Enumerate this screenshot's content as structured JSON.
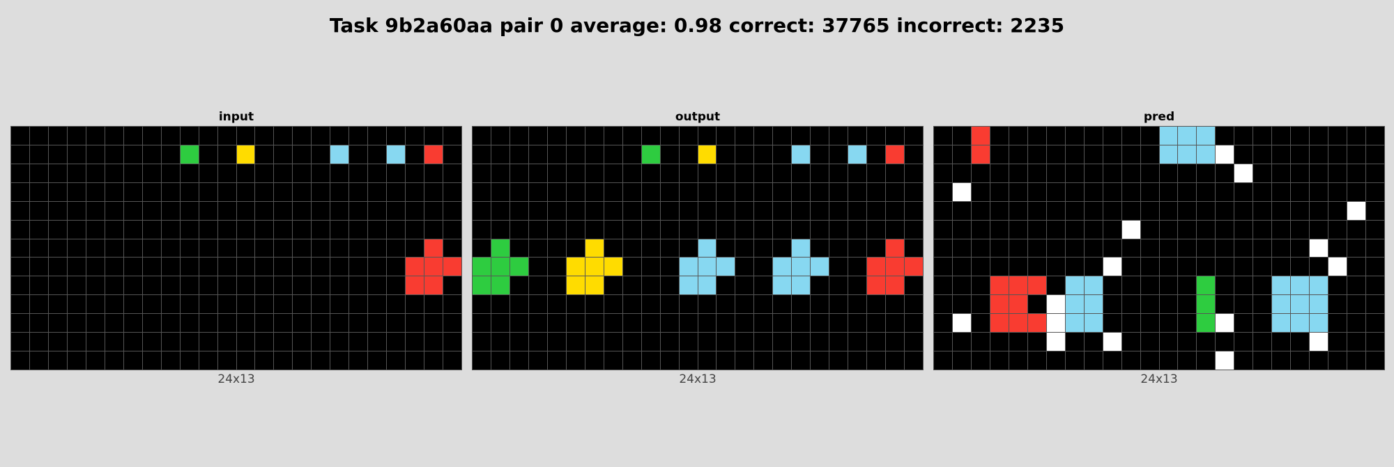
{
  "title": "Task 9b2a60aa pair 0 average: 0.98 correct: 37765 incorrect: 2235",
  "colors": {
    "0": "#000000",
    "1": "#1e93ff",
    "2": "#f93c31",
    "3": "#2ecc40",
    "4": "#ffdc00",
    "5": "#999999",
    "6": "#e53aa3",
    "7": "#ff851b",
    "8": "#87d8f1",
    "9": "#921231",
    "10": "#ffffff"
  },
  "panels": [
    {
      "title": "input",
      "size": "24x13",
      "grid": [
        [
          0,
          0,
          0,
          0,
          0,
          0,
          0,
          0,
          0,
          0,
          0,
          0,
          0,
          0,
          0,
          0,
          0,
          0,
          0,
          0,
          0,
          0,
          0,
          0
        ],
        [
          0,
          0,
          0,
          0,
          0,
          0,
          0,
          0,
          0,
          3,
          0,
          0,
          4,
          0,
          0,
          0,
          0,
          8,
          0,
          0,
          8,
          0,
          2,
          0
        ],
        [
          0,
          0,
          0,
          0,
          0,
          0,
          0,
          0,
          0,
          0,
          0,
          0,
          0,
          0,
          0,
          0,
          0,
          0,
          0,
          0,
          0,
          0,
          0,
          0
        ],
        [
          0,
          0,
          0,
          0,
          0,
          0,
          0,
          0,
          0,
          0,
          0,
          0,
          0,
          0,
          0,
          0,
          0,
          0,
          0,
          0,
          0,
          0,
          0,
          0
        ],
        [
          0,
          0,
          0,
          0,
          0,
          0,
          0,
          0,
          0,
          0,
          0,
          0,
          0,
          0,
          0,
          0,
          0,
          0,
          0,
          0,
          0,
          0,
          0,
          0
        ],
        [
          0,
          0,
          0,
          0,
          0,
          0,
          0,
          0,
          0,
          0,
          0,
          0,
          0,
          0,
          0,
          0,
          0,
          0,
          0,
          0,
          0,
          0,
          0,
          0
        ],
        [
          0,
          0,
          0,
          0,
          0,
          0,
          0,
          0,
          0,
          0,
          0,
          0,
          0,
          0,
          0,
          0,
          0,
          0,
          0,
          0,
          0,
          0,
          2,
          0
        ],
        [
          0,
          0,
          0,
          0,
          0,
          0,
          0,
          0,
          0,
          0,
          0,
          0,
          0,
          0,
          0,
          0,
          0,
          0,
          0,
          0,
          0,
          2,
          2,
          2
        ],
        [
          0,
          0,
          0,
          0,
          0,
          0,
          0,
          0,
          0,
          0,
          0,
          0,
          0,
          0,
          0,
          0,
          0,
          0,
          0,
          0,
          0,
          2,
          2,
          0
        ],
        [
          0,
          0,
          0,
          0,
          0,
          0,
          0,
          0,
          0,
          0,
          0,
          0,
          0,
          0,
          0,
          0,
          0,
          0,
          0,
          0,
          0,
          0,
          0,
          0
        ],
        [
          0,
          0,
          0,
          0,
          0,
          0,
          0,
          0,
          0,
          0,
          0,
          0,
          0,
          0,
          0,
          0,
          0,
          0,
          0,
          0,
          0,
          0,
          0,
          0
        ],
        [
          0,
          0,
          0,
          0,
          0,
          0,
          0,
          0,
          0,
          0,
          0,
          0,
          0,
          0,
          0,
          0,
          0,
          0,
          0,
          0,
          0,
          0,
          0,
          0
        ],
        [
          0,
          0,
          0,
          0,
          0,
          0,
          0,
          0,
          0,
          0,
          0,
          0,
          0,
          0,
          0,
          0,
          0,
          0,
          0,
          0,
          0,
          0,
          0,
          0
        ]
      ]
    },
    {
      "title": "output",
      "size": "24x13",
      "grid": [
        [
          0,
          0,
          0,
          0,
          0,
          0,
          0,
          0,
          0,
          0,
          0,
          0,
          0,
          0,
          0,
          0,
          0,
          0,
          0,
          0,
          0,
          0,
          0,
          0
        ],
        [
          0,
          0,
          0,
          0,
          0,
          0,
          0,
          0,
          0,
          3,
          0,
          0,
          4,
          0,
          0,
          0,
          0,
          8,
          0,
          0,
          8,
          0,
          2,
          0
        ],
        [
          0,
          0,
          0,
          0,
          0,
          0,
          0,
          0,
          0,
          0,
          0,
          0,
          0,
          0,
          0,
          0,
          0,
          0,
          0,
          0,
          0,
          0,
          0,
          0
        ],
        [
          0,
          0,
          0,
          0,
          0,
          0,
          0,
          0,
          0,
          0,
          0,
          0,
          0,
          0,
          0,
          0,
          0,
          0,
          0,
          0,
          0,
          0,
          0,
          0
        ],
        [
          0,
          0,
          0,
          0,
          0,
          0,
          0,
          0,
          0,
          0,
          0,
          0,
          0,
          0,
          0,
          0,
          0,
          0,
          0,
          0,
          0,
          0,
          0,
          0
        ],
        [
          0,
          0,
          0,
          0,
          0,
          0,
          0,
          0,
          0,
          0,
          0,
          0,
          0,
          0,
          0,
          0,
          0,
          0,
          0,
          0,
          0,
          0,
          0,
          0
        ],
        [
          0,
          3,
          0,
          0,
          0,
          0,
          4,
          0,
          0,
          0,
          0,
          0,
          8,
          0,
          0,
          0,
          0,
          8,
          0,
          0,
          0,
          0,
          2,
          0
        ],
        [
          3,
          3,
          3,
          0,
          0,
          4,
          4,
          4,
          0,
          0,
          0,
          8,
          8,
          8,
          0,
          0,
          8,
          8,
          8,
          0,
          0,
          2,
          2,
          2
        ],
        [
          3,
          3,
          0,
          0,
          0,
          4,
          4,
          0,
          0,
          0,
          0,
          8,
          8,
          0,
          0,
          0,
          8,
          8,
          0,
          0,
          0,
          2,
          2,
          0
        ],
        [
          0,
          0,
          0,
          0,
          0,
          0,
          0,
          0,
          0,
          0,
          0,
          0,
          0,
          0,
          0,
          0,
          0,
          0,
          0,
          0,
          0,
          0,
          0,
          0
        ],
        [
          0,
          0,
          0,
          0,
          0,
          0,
          0,
          0,
          0,
          0,
          0,
          0,
          0,
          0,
          0,
          0,
          0,
          0,
          0,
          0,
          0,
          0,
          0,
          0
        ],
        [
          0,
          0,
          0,
          0,
          0,
          0,
          0,
          0,
          0,
          0,
          0,
          0,
          0,
          0,
          0,
          0,
          0,
          0,
          0,
          0,
          0,
          0,
          0,
          0
        ],
        [
          0,
          0,
          0,
          0,
          0,
          0,
          0,
          0,
          0,
          0,
          0,
          0,
          0,
          0,
          0,
          0,
          0,
          0,
          0,
          0,
          0,
          0,
          0,
          0
        ]
      ]
    },
    {
      "title": "pred",
      "size": "24x13",
      "grid": [
        [
          0,
          0,
          2,
          0,
          0,
          0,
          0,
          0,
          0,
          0,
          0,
          0,
          8,
          8,
          8,
          0,
          0,
          0,
          0,
          0,
          0,
          0,
          0,
          0
        ],
        [
          0,
          0,
          2,
          0,
          0,
          0,
          0,
          0,
          0,
          0,
          0,
          0,
          8,
          8,
          8,
          10,
          0,
          0,
          0,
          0,
          0,
          0,
          0,
          0
        ],
        [
          0,
          0,
          0,
          0,
          0,
          0,
          0,
          0,
          0,
          0,
          0,
          0,
          0,
          0,
          0,
          0,
          10,
          0,
          0,
          0,
          0,
          0,
          0,
          0
        ],
        [
          0,
          10,
          0,
          0,
          0,
          0,
          0,
          0,
          0,
          0,
          0,
          0,
          0,
          0,
          0,
          0,
          0,
          0,
          0,
          0,
          0,
          0,
          0,
          0
        ],
        [
          0,
          0,
          0,
          0,
          0,
          0,
          0,
          0,
          0,
          0,
          0,
          0,
          0,
          0,
          0,
          0,
          0,
          0,
          0,
          0,
          0,
          0,
          10,
          0
        ],
        [
          0,
          0,
          0,
          0,
          0,
          0,
          0,
          0,
          0,
          0,
          10,
          0,
          0,
          0,
          0,
          0,
          0,
          0,
          0,
          0,
          0,
          0,
          0,
          0
        ],
        [
          0,
          0,
          0,
          0,
          0,
          0,
          0,
          0,
          0,
          0,
          0,
          0,
          0,
          0,
          0,
          0,
          0,
          0,
          0,
          0,
          10,
          0,
          0,
          0
        ],
        [
          0,
          0,
          0,
          0,
          0,
          0,
          0,
          0,
          0,
          10,
          0,
          0,
          0,
          0,
          0,
          0,
          0,
          0,
          0,
          0,
          0,
          10,
          0,
          0
        ],
        [
          0,
          0,
          0,
          2,
          2,
          2,
          0,
          8,
          8,
          0,
          0,
          0,
          0,
          0,
          3,
          0,
          0,
          0,
          8,
          8,
          8,
          0,
          0,
          0
        ],
        [
          0,
          0,
          0,
          2,
          2,
          0,
          10,
          8,
          8,
          0,
          0,
          0,
          0,
          0,
          3,
          0,
          0,
          0,
          8,
          8,
          8,
          0,
          0,
          0
        ],
        [
          0,
          10,
          0,
          2,
          2,
          2,
          10,
          8,
          8,
          0,
          0,
          0,
          0,
          0,
          3,
          10,
          0,
          0,
          8,
          8,
          8,
          0,
          0,
          0
        ],
        [
          0,
          0,
          0,
          0,
          0,
          0,
          10,
          0,
          0,
          10,
          0,
          0,
          0,
          0,
          0,
          0,
          0,
          0,
          0,
          0,
          10,
          0,
          0,
          0
        ],
        [
          0,
          0,
          0,
          0,
          0,
          0,
          0,
          0,
          0,
          0,
          0,
          0,
          0,
          0,
          0,
          10,
          0,
          0,
          0,
          0,
          0,
          0,
          0,
          0
        ]
      ]
    }
  ]
}
